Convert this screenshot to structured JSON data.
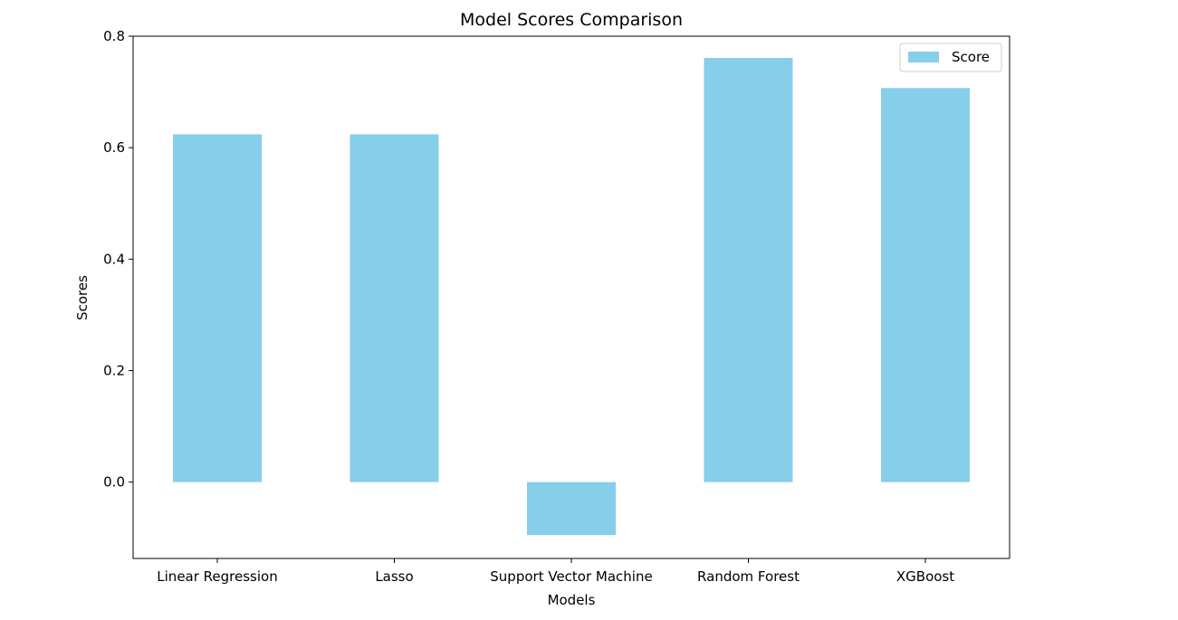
{
  "chart_data": {
    "type": "bar",
    "title": "Model Scores Comparison",
    "xlabel": "Models",
    "ylabel": "Scores",
    "categories": [
      "Linear Regression",
      "Lasso",
      "Support Vector Machine",
      "Random Forest",
      "XGBoost"
    ],
    "series": [
      {
        "name": "Score",
        "color": "#87CEEB",
        "values": [
          0.624,
          0.624,
          -0.095,
          0.761,
          0.707
        ]
      }
    ],
    "ylim": [
      -0.137,
      0.8
    ],
    "yticks": [
      "0.0",
      "0.2",
      "0.4",
      "0.6",
      "0.8"
    ],
    "grid": false,
    "legend": "top-right"
  }
}
